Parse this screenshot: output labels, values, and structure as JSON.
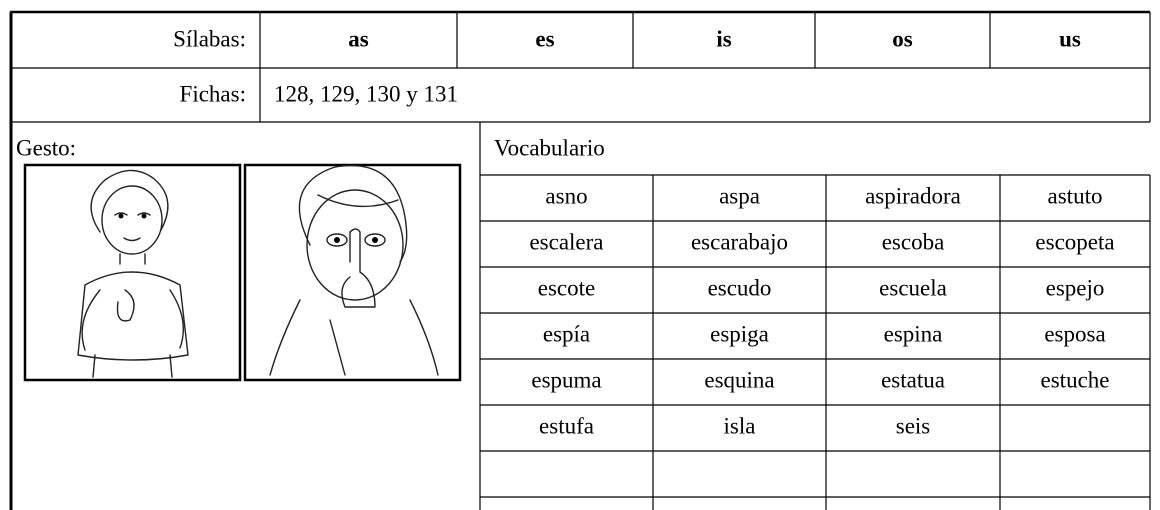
{
  "table": {
    "header": {
      "label": "Sílabas:",
      "syllables": [
        "as",
        "es",
        "is",
        "os",
        "us"
      ]
    },
    "fichas": {
      "label": "Fichas:",
      "value": "128, 129, 130 y 131"
    },
    "gesture": {
      "label": "Gesto:"
    },
    "vocabulary": {
      "title": "Vocabulario",
      "rows": [
        [
          "asno",
          "aspa",
          "aspiradora",
          "astuto"
        ],
        [
          "escalera",
          "escarabajo",
          "escoba",
          "escopeta"
        ],
        [
          "escote",
          "escudo",
          "escuela",
          "espejo"
        ],
        [
          "espía",
          "espiga",
          "espina",
          "esposa"
        ],
        [
          "espuma",
          "esquina",
          "estatua",
          "estuche"
        ],
        [
          "estufa",
          "isla",
          "seis"
        ]
      ]
    }
  }
}
